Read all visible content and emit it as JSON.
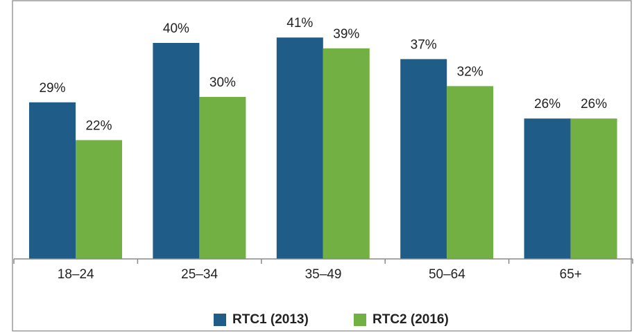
{
  "chart_data": {
    "type": "bar",
    "categories": [
      "18–24",
      "25–34",
      "35–49",
      "50–64",
      "65+"
    ],
    "series": [
      {
        "name": "RTC1 (2013)",
        "color": "#1f5c87",
        "values": [
          29,
          40,
          41,
          37,
          26
        ],
        "value_labels": [
          "29%",
          "40%",
          "41%",
          "37%",
          "26%"
        ]
      },
      {
        "name": "RTC2 (2016)",
        "color": "#72b043",
        "values": [
          22,
          30,
          39,
          32,
          26
        ],
        "value_labels": [
          "22%",
          "30%",
          "39%",
          "32%",
          "26%"
        ]
      }
    ],
    "ylim": [
      0,
      48
    ],
    "grid": false
  }
}
